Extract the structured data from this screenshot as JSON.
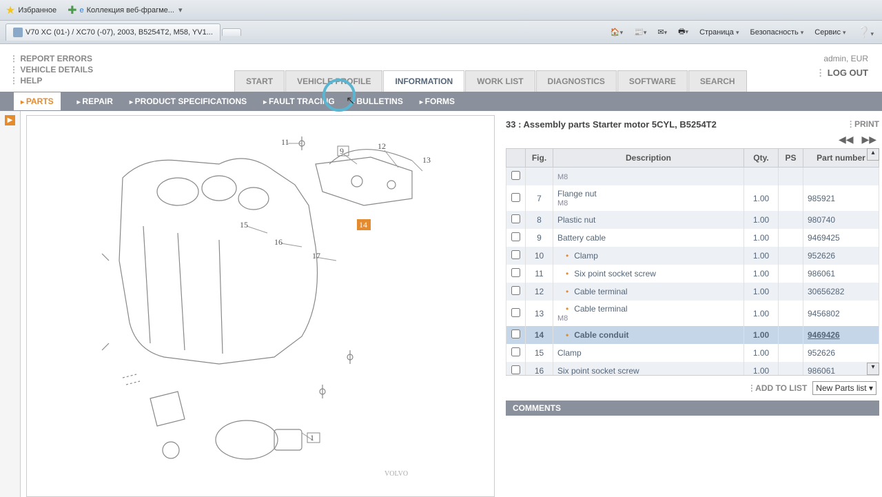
{
  "browser": {
    "favorites": "Избранное",
    "webfragments": "Коллекция веб-фрагме...",
    "tab_title": "V70 XC (01-) / XC70 (-07), 2003, B5254T2, M58, YV1...",
    "menu_page": "Страница",
    "menu_security": "Безопасность",
    "menu_service": "Сервис"
  },
  "header": {
    "report_errors": "REPORT ERRORS",
    "vehicle_details": "VEHICLE DETAILS",
    "help": "HELP",
    "user": "admin, EUR",
    "logout": "LOG OUT"
  },
  "main_tabs": {
    "start": "START",
    "vehicle_profile": "VEHICLE PROFILE",
    "information": "INFORMATION",
    "work_list": "WORK LIST",
    "diagnostics": "DIAGNOSTICS",
    "software": "SOFTWARE",
    "search": "SEARCH"
  },
  "sub_tabs": {
    "parts": "PARTS",
    "repair": "REPAIR",
    "product_spec": "PRODUCT SPECIFICATIONS",
    "fault_tracing": "FAULT TRACING",
    "bulletins": "BULLETINS",
    "forms": "FORMS"
  },
  "parts": {
    "title": "33 : Assembly parts Starter motor 5CYL, B5254T2",
    "print": "PRINT",
    "add_to_list": "ADD TO LIST",
    "list_name": "New Parts list",
    "comments": "COMMENTS",
    "columns": {
      "fig": "Fig.",
      "desc": "Description",
      "qty": "Qty.",
      "ps": "PS",
      "pn": "Part number"
    },
    "rows": [
      {
        "fig": "",
        "desc": "",
        "sub": "M8",
        "qty": "",
        "pn": "",
        "alt": true
      },
      {
        "fig": "7",
        "desc": "Flange nut",
        "sub": "M8",
        "qty": "1.00",
        "pn": "985921",
        "alt": false
      },
      {
        "fig": "8",
        "desc": "Plastic nut",
        "qty": "1.00",
        "pn": "980740",
        "alt": true
      },
      {
        "fig": "9",
        "desc": "Battery cable",
        "qty": "1.00",
        "pn": "9469425",
        "alt": false
      },
      {
        "fig": "10",
        "desc": "Clamp",
        "bullet": true,
        "qty": "1.00",
        "pn": "952626",
        "alt": true
      },
      {
        "fig": "11",
        "desc": "Six point socket screw",
        "bullet": true,
        "qty": "1.00",
        "pn": "986061",
        "alt": false
      },
      {
        "fig": "12",
        "desc": "Cable terminal",
        "bullet": true,
        "qty": "1.00",
        "pn": "30656282",
        "alt": true
      },
      {
        "fig": "13",
        "desc": "Cable terminal",
        "sub": "M8",
        "bullet": true,
        "qty": "1.00",
        "pn": "9456802",
        "alt": false
      },
      {
        "fig": "14",
        "desc": "Cable conduit",
        "bullet": true,
        "qty": "1.00",
        "pn": "9469426",
        "selected": true
      },
      {
        "fig": "15",
        "desc": "Clamp",
        "qty": "1.00",
        "pn": "952626",
        "alt": false
      },
      {
        "fig": "16",
        "desc": "Six point socket screw",
        "qty": "1.00",
        "pn": "986061",
        "alt": true
      }
    ]
  },
  "diagram": {
    "callouts": [
      "1",
      "9",
      "11",
      "12",
      "13",
      "14",
      "15",
      "16",
      "17"
    ],
    "highlighted": "14",
    "brand": "VOLVO"
  }
}
